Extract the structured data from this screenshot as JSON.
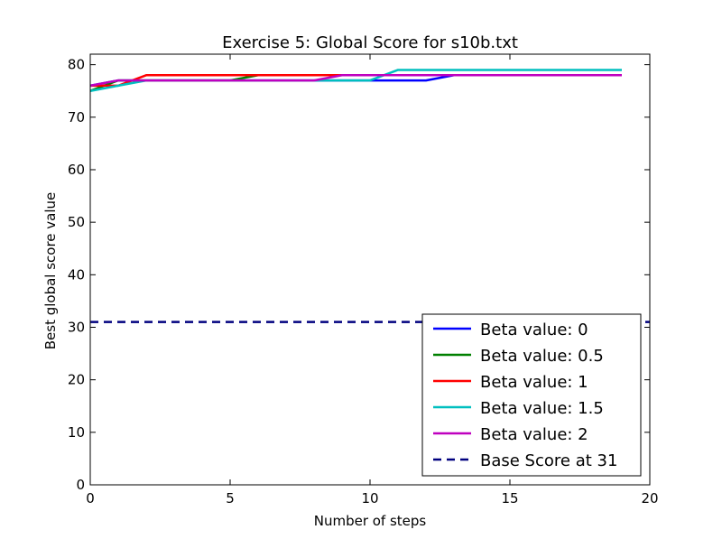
{
  "chart_data": {
    "type": "line",
    "title": "Exercise 5: Global Score for s10b.txt",
    "xlabel": "Number of steps",
    "ylabel": "Best global score value",
    "xlim": [
      0,
      20
    ],
    "ylim": [
      0,
      82
    ],
    "xticks": [
      0,
      5,
      10,
      15,
      20
    ],
    "yticks": [
      0,
      10,
      20,
      30,
      40,
      50,
      60,
      70,
      80
    ],
    "grid": false,
    "legend_position": "bottom-right",
    "x": [
      0,
      1,
      2,
      3,
      4,
      5,
      6,
      7,
      8,
      9,
      10,
      11,
      12,
      13,
      14,
      15,
      16,
      17,
      18,
      19
    ],
    "series": [
      {
        "name": "Beta value: 0",
        "color": "#0000ff",
        "style": "solid",
        "values": [
          76,
          77,
          77,
          77,
          77,
          77,
          77,
          77,
          77,
          77,
          77,
          77,
          77,
          78,
          78,
          78,
          78,
          78,
          78,
          78
        ]
      },
      {
        "name": "Beta value: 0.5",
        "color": "#008000",
        "style": "solid",
        "values": [
          75,
          77,
          77,
          77,
          77,
          77,
          78,
          78,
          78,
          78,
          78,
          78,
          78,
          78,
          78,
          78,
          78,
          78,
          78,
          78
        ]
      },
      {
        "name": "Beta value: 1",
        "color": "#ff0000",
        "style": "solid",
        "values": [
          76,
          76,
          78,
          78,
          78,
          78,
          78,
          78,
          78,
          78,
          78,
          78,
          78,
          78,
          78,
          78,
          78,
          78,
          78,
          78
        ]
      },
      {
        "name": "Beta value: 1.5",
        "color": "#00bfbf",
        "style": "solid",
        "values": [
          75,
          76,
          77,
          77,
          77,
          77,
          77,
          77,
          77,
          77,
          77,
          79,
          79,
          79,
          79,
          79,
          79,
          79,
          79,
          79
        ]
      },
      {
        "name": "Beta value: 2",
        "color": "#bf00bf",
        "style": "solid",
        "values": [
          76,
          77,
          77,
          77,
          77,
          77,
          77,
          77,
          77,
          78,
          78,
          78,
          78,
          78,
          78,
          78,
          78,
          78,
          78,
          78
        ]
      },
      {
        "name": "Base Score at 31",
        "color": "#00007f",
        "style": "dashed",
        "constant": 31
      }
    ]
  }
}
